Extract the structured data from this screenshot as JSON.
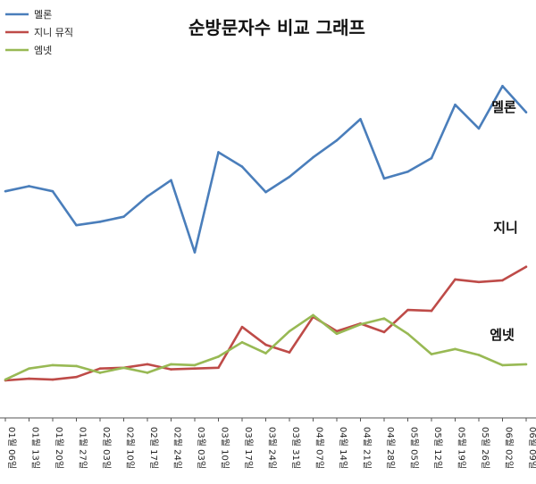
{
  "chart_data": {
    "type": "line",
    "title": "순방문자수 비교 그래프",
    "xlabel": "",
    "ylabel": "",
    "grid": false,
    "legend": "top-left",
    "categories": [
      "01월 06일",
      "01월 13일",
      "01월 20일",
      "01월 27일",
      "02월 03일",
      "02월 10일",
      "02월 17일",
      "02월 24일",
      "03월 03일",
      "03월 10일",
      "03월 17일",
      "03월 24일",
      "03월 31일",
      "04월 07일",
      "04월 14일",
      "04월 21일",
      "04월 28일",
      "05월 05일",
      "05월 12일",
      "05월 19일",
      "05월 26일",
      "06월 02일",
      "06월 09일"
    ],
    "series": [
      {
        "name": "멜론",
        "end_label": "멜론",
        "color": "#4a7ebb",
        "values": [
          223,
          229,
          223,
          183,
          187,
          193,
          217,
          236,
          151,
          269,
          252,
          222,
          240,
          263,
          283,
          308,
          238,
          246,
          262,
          325,
          297,
          347,
          316
        ]
      },
      {
        "name": "지니 뮤직",
        "end_label": "지니",
        "color": "#be4b48",
        "values": [
          0,
          2,
          1,
          4,
          14,
          15,
          19,
          13,
          14,
          15,
          63,
          42,
          33,
          75,
          58,
          67,
          57,
          83,
          82,
          119,
          116,
          118,
          134
        ]
      },
      {
        "name": "엠넷",
        "end_label": "엠넷",
        "color": "#98b954",
        "values": [
          1,
          14,
          18,
          17,
          9,
          15,
          9,
          19,
          18,
          28,
          45,
          32,
          58,
          77,
          55,
          66,
          73,
          55,
          31,
          37,
          30,
          18,
          19
        ]
      }
    ]
  }
}
